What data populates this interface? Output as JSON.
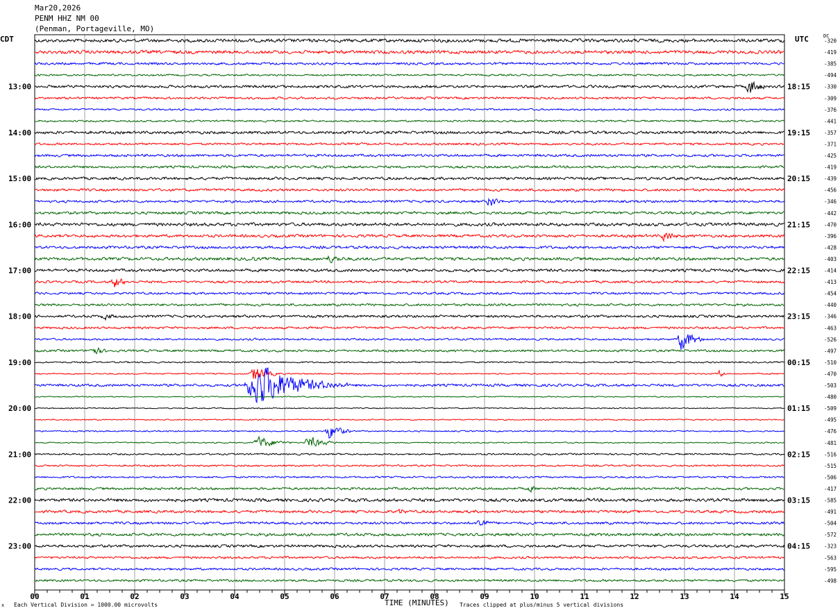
{
  "header": {
    "date": "Mar20,2026",
    "station": "PENM HHZ NM 00",
    "location": "(Penman, Portageville, MO)"
  },
  "labels": {
    "left_zone": "CDT",
    "right_zone": "UTC",
    "dc": "DC",
    "xlabel": "TIME (MINUTES)",
    "scale_note": "Each Vertical Division = 1000.00 microvolts",
    "clip_note": "Traces clipped at plus/minus 5 vertical divisions",
    "corner_mark": "x"
  },
  "colors": {
    "trace_cycle": [
      "#000000",
      "#ff0000",
      "#0000ff",
      "#006400"
    ],
    "grid": "#a0a0a0",
    "frame": "#000000"
  },
  "chart_data": {
    "type": "line",
    "title": "PENM HHZ NM 00",
    "xlabel": "TIME (MINUTES)",
    "xlim": [
      0,
      15
    ],
    "x_ticks": [
      "00",
      "01",
      "02",
      "03",
      "04",
      "05",
      "06",
      "07",
      "08",
      "09",
      "10",
      "11",
      "12",
      "13",
      "14",
      "15"
    ],
    "trace_count": 48,
    "minutes_per_trace": 15,
    "left_hour_labels": [
      "13:00",
      "14:00",
      "15:00",
      "16:00",
      "17:00",
      "18:00",
      "19:00",
      "20:00",
      "21:00",
      "22:00",
      "23:00"
    ],
    "right_hour_labels": [
      "18:15",
      "19:15",
      "20:15",
      "21:15",
      "22:15",
      "23:15",
      "00:15",
      "01:15",
      "02:15",
      "03:15",
      "04:15"
    ],
    "first_labeled_trace": 4,
    "dc_offsets": [
      -320,
      -419,
      -385,
      -494,
      -330,
      -309,
      -376,
      -441,
      -357,
      -371,
      -425,
      -419,
      -439,
      -456,
      -346,
      -442,
      -470,
      -396,
      -428,
      -403,
      -414,
      -413,
      -454,
      -440,
      -346,
      -463,
      -526,
      -497,
      -510,
      -470,
      -503,
      -480,
      -509,
      -495,
      -476,
      -481,
      -516,
      -515,
      -506,
      -417,
      -585,
      -491,
      -504,
      -572,
      -323,
      -563,
      -595,
      -498
    ],
    "noise_levels": [
      2.2,
      2.2,
      1.6,
      1.2,
      1.8,
      1.5,
      1.2,
      1.2,
      1.9,
      1.5,
      1.7,
      1.6,
      1.8,
      1.7,
      1.6,
      1.8,
      2.1,
      1.9,
      1.8,
      2.0,
      1.9,
      1.6,
      1.5,
      1.6,
      1.7,
      1.5,
      1.3,
      1.5,
      1.0,
      0.9,
      1.7,
      0.7,
      0.7,
      0.8,
      0.9,
      0.8,
      1.1,
      1.2,
      1.2,
      1.6,
      2.1,
      1.8,
      1.7,
      1.9,
      1.8,
      1.5,
      1.5,
      1.5
    ],
    "events": [
      {
        "trace": 4,
        "minute": 14.3,
        "amplitude": 13,
        "duration": 0.3
      },
      {
        "trace": 14,
        "minute": 9.1,
        "amplitude": 10,
        "duration": 0.25
      },
      {
        "trace": 17,
        "minute": 12.6,
        "amplitude": 9,
        "duration": 0.3
      },
      {
        "trace": 19,
        "minute": 5.9,
        "amplitude": 6,
        "duration": 0.5
      },
      {
        "trace": 19,
        "minute": 4.3,
        "amplitude": 5,
        "duration": 0.3
      },
      {
        "trace": 21,
        "minute": 1.6,
        "amplitude": 9,
        "duration": 0.3
      },
      {
        "trace": 24,
        "minute": 1.4,
        "amplitude": 5,
        "duration": 0.4
      },
      {
        "trace": 26,
        "minute": 12.95,
        "amplitude": 18,
        "duration": 0.35
      },
      {
        "trace": 27,
        "minute": 1.15,
        "amplitude": 7,
        "duration": 0.35
      },
      {
        "trace": 29,
        "minute": 13.7,
        "amplitude": 6,
        "duration": 0.15
      },
      {
        "trace": 29,
        "minute": 4.4,
        "amplitude": 12,
        "duration": 0.4
      },
      {
        "trace": 30,
        "minute": 4.5,
        "amplitude": 30,
        "duration": 1.2
      },
      {
        "trace": 34,
        "minute": 5.9,
        "amplitude": 12,
        "duration": 0.35
      },
      {
        "trace": 35,
        "minute": 4.5,
        "amplitude": 9,
        "duration": 0.5
      },
      {
        "trace": 35,
        "minute": 5.5,
        "amplitude": 9,
        "duration": 0.45
      },
      {
        "trace": 41,
        "minute": 7.3,
        "amplitude": 5,
        "duration": 0.25
      },
      {
        "trace": 42,
        "minute": 8.9,
        "amplitude": 9,
        "duration": 0.25
      },
      {
        "trace": 39,
        "minute": 9.9,
        "amplitude": 5,
        "duration": 0.25
      }
    ]
  }
}
